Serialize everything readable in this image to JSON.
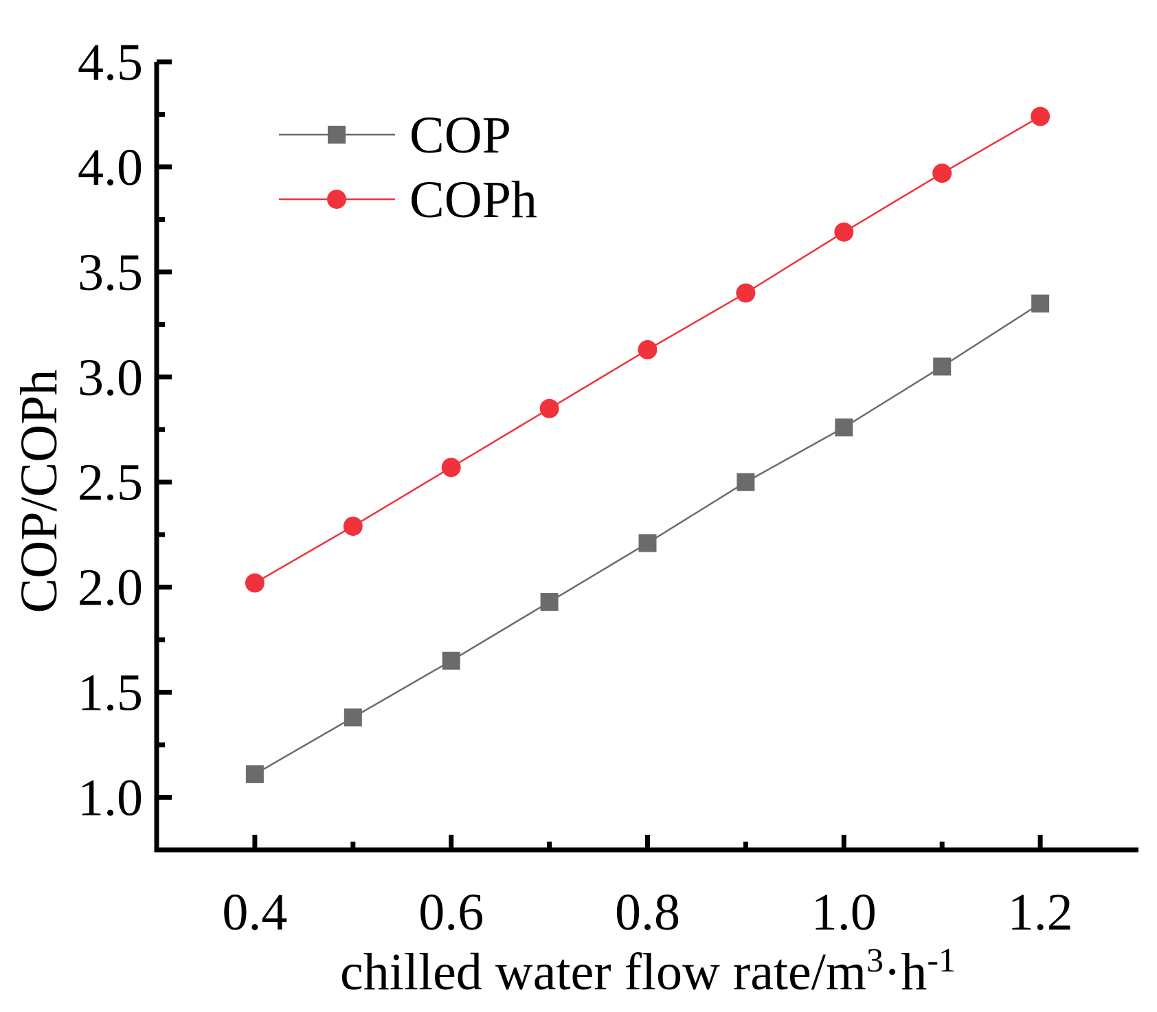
{
  "chart_data": {
    "type": "line",
    "title": "",
    "xlabel": "chilled water flow rate/m",
    "xlabel_sup1": "3",
    "xlabel_mid": "·h",
    "xlabel_sup2": "-1",
    "ylabel": "COP/COPh",
    "xlim": [
      0.3,
      1.3
    ],
    "ylim": [
      0.75,
      4.5
    ],
    "x_ticks": [
      0.4,
      0.6,
      0.8,
      1.0,
      1.2
    ],
    "x_tick_labels": [
      "0.4",
      "0.6",
      "0.8",
      "1.0",
      "1.2"
    ],
    "x_minor_ticks": [
      0.5,
      0.7,
      0.9,
      1.1
    ],
    "y_ticks": [
      1.0,
      1.5,
      2.0,
      2.5,
      3.0,
      3.5,
      4.0,
      4.5
    ],
    "y_tick_labels": [
      "1.0",
      "1.5",
      "2.0",
      "2.5",
      "3.0",
      "3.5",
      "4.0",
      "4.5"
    ],
    "y_minor_ticks": [
      1.25,
      1.75,
      2.25,
      2.75,
      3.25,
      3.75,
      4.25
    ],
    "grid": false,
    "legend_position": "top-left",
    "x": [
      0.4,
      0.5,
      0.6,
      0.7,
      0.8,
      0.9,
      1.0,
      1.1,
      1.2
    ],
    "series": [
      {
        "name": "COP",
        "marker": "square",
        "color": "#6b6b6b",
        "values": [
          1.11,
          1.38,
          1.65,
          1.93,
          2.21,
          2.5,
          2.76,
          3.05,
          3.35
        ]
      },
      {
        "name": "COPh",
        "marker": "circle",
        "color": "#f0323c",
        "values": [
          2.02,
          2.29,
          2.57,
          2.85,
          3.13,
          3.4,
          3.69,
          3.97,
          4.24
        ]
      }
    ]
  }
}
